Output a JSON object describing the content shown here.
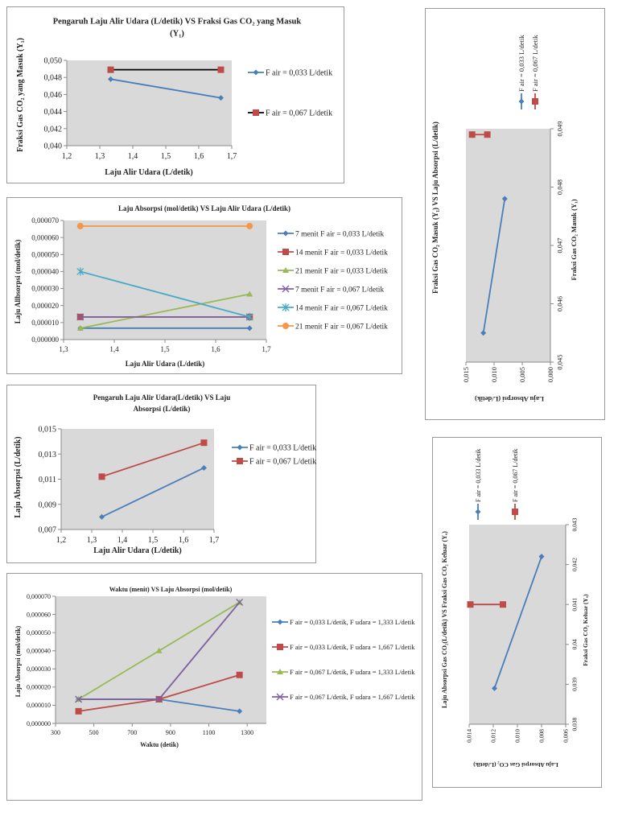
{
  "chart_data": [
    {
      "type": "line",
      "title": [
        "Pengaruh Laju Alir Udara (L/detik) VS Fraksi Gas CO₂ yang Masuk",
        "(Y₁)"
      ],
      "xlabel": "Laju Alir Udara (L/detik)",
      "ylabel": "Fraksi Gas CO₂ yang Masuk (Y₁)",
      "xlim": [
        1.2,
        1.7
      ],
      "ylim": [
        0.04,
        0.05
      ],
      "xticks": [
        1.2,
        1.3,
        1.4,
        1.5,
        1.6,
        1.7
      ],
      "xtick_labels": [
        "1,2",
        "1,3",
        "1,4",
        "1,5",
        "1,6",
        "1,7"
      ],
      "yticks": [
        0.04,
        0.042,
        0.044,
        0.046,
        0.048,
        0.05
      ],
      "ytick_labels": [
        "0,040",
        "0,042",
        "0,044",
        "0,046",
        "0,048",
        "0,050"
      ],
      "grid": false,
      "legend": "right",
      "series": [
        {
          "name": "F air = 0,033 L/detik",
          "color": "#4a7ebb",
          "marker_color": "#4a7ebb",
          "marker": "diamond",
          "x": [
            1.333,
            1.667
          ],
          "y": [
            0.0478,
            0.0456
          ]
        },
        {
          "name": "F air = 0,067 L/detik",
          "color": "#000000",
          "marker_color": "#be4b48",
          "marker": "square",
          "x": [
            1.333,
            1.667
          ],
          "y": [
            0.0489,
            0.0489
          ]
        }
      ]
    },
    {
      "type": "line",
      "title": [
        "Laju Absorpsi (mol/detik) VS Laju Alir Udara (L/detik)"
      ],
      "xlabel": "Laju Alir Udara (L/detik)",
      "ylabel": "Laju Allbsorpsi  (mol/detik)",
      "xlim": [
        1.3,
        1.7
      ],
      "ylim": [
        0,
        7e-05
      ],
      "xticks": [
        1.3,
        1.4,
        1.5,
        1.6,
        1.7
      ],
      "xtick_labels": [
        "1,3",
        "1,4",
        "1,5",
        "1,6",
        "1,7"
      ],
      "yticks": [
        0,
        1e-05,
        2e-05,
        3e-05,
        4e-05,
        5e-05,
        6e-05,
        7e-05
      ],
      "ytick_labels": [
        "0,000000",
        "0,000010",
        "0,000020",
        "0,000030",
        "0,000040",
        "0,000050",
        "0,000060",
        "0,000070"
      ],
      "grid": false,
      "legend": "right",
      "series": [
        {
          "name": "7 menit F air = 0,033 L/detik",
          "color": "#4a7ebb",
          "marker_color": "#4a7ebb",
          "marker": "diamond",
          "x": [
            1.333,
            1.667
          ],
          "y": [
            6.7e-06,
            6.7e-06
          ]
        },
        {
          "name": "14 menit F air = 0,033 L/detik",
          "color": "#be4b48",
          "marker_color": "#be4b48",
          "marker": "square",
          "x": [
            1.333,
            1.667
          ],
          "y": [
            1.33e-05,
            1.33e-05
          ]
        },
        {
          "name": "21 menit F air = 0,033 L/detik",
          "color": "#98b954",
          "marker_color": "#98b954",
          "marker": "triangle",
          "x": [
            1.333,
            1.667
          ],
          "y": [
            6.7e-06,
            2.67e-05
          ]
        },
        {
          "name": "7 menit F air = 0,067 L/detik",
          "color": "#7d60a0",
          "marker_color": "#7d60a0",
          "marker": "x",
          "x": [
            1.333,
            1.667
          ],
          "y": [
            1.33e-05,
            1.33e-05
          ]
        },
        {
          "name": "14 menit F air = 0,067 L/detik",
          "color": "#46aac5",
          "marker_color": "#46aac5",
          "marker": "star",
          "x": [
            1.333,
            1.667
          ],
          "y": [
            4e-05,
            1.33e-05
          ]
        },
        {
          "name": "21 menit F air = 0,067 L/detik",
          "color": "#f79646",
          "marker_color": "#f79646",
          "marker": "circle",
          "x": [
            1.333,
            1.667
          ],
          "y": [
            6.67e-05,
            6.67e-05
          ]
        }
      ]
    },
    {
      "type": "line",
      "title": [
        "Pengaruh Laju Alir Udara(L/detik) VS  Laju",
        "Absorpsi (L/detik)"
      ],
      "xlabel": "Laju Alir Udara (L/detik)",
      "ylabel": "Laju Absorpsi (L/detik)",
      "xlim": [
        1.2,
        1.7
      ],
      "ylim": [
        0.007,
        0.015
      ],
      "xticks": [
        1.2,
        1.3,
        1.4,
        1.5,
        1.6,
        1.7
      ],
      "xtick_labels": [
        "1,2",
        "1,3",
        "1,4",
        "1,5",
        "1,6",
        "1,7"
      ],
      "yticks": [
        0.007,
        0.009,
        0.011,
        0.013,
        0.015
      ],
      "ytick_labels": [
        "0,007",
        "0,009",
        "0,011",
        "0,013",
        "0,015"
      ],
      "grid": false,
      "legend": "right",
      "series": [
        {
          "name": "F air = 0,033 L/detik",
          "color": "#4a7ebb",
          "marker_color": "#4a7ebb",
          "marker": "diamond",
          "x": [
            1.333,
            1.667
          ],
          "y": [
            0.008,
            0.0119
          ]
        },
        {
          "name": "F air = 0,067 L/detik",
          "color": "#be4b48",
          "marker_color": "#be4b48",
          "marker": "square",
          "x": [
            1.333,
            1.667
          ],
          "y": [
            0.0112,
            0.0139
          ]
        }
      ]
    },
    {
      "type": "line",
      "title": [
        "Waktu (menit) VS Laju Absorpsi (mol/detik)"
      ],
      "xlabel": "Waktu (detik)",
      "ylabel": "Laju Absorpsi (mol/detik)",
      "xlim": [
        300,
        1400
      ],
      "ylim": [
        0,
        7e-05
      ],
      "xticks": [
        300,
        500,
        700,
        900,
        1100,
        1300
      ],
      "xtick_labels": [
        "300",
        "500",
        "700",
        "900",
        "1100",
        "1300"
      ],
      "yticks": [
        0,
        1e-05,
        2e-05,
        3e-05,
        4e-05,
        5e-05,
        6e-05,
        7e-05
      ],
      "ytick_labels": [
        "0,000000",
        "0,000010",
        "0,000020",
        "0,000030",
        "0,000040",
        "0,000050",
        "0,000060",
        "0,000070"
      ],
      "grid": false,
      "legend": "right",
      "series": [
        {
          "name": "F air = 0,033 L/detik, F udara = 1,333 L/detik",
          "color": "#4a7ebb",
          "marker_color": "#4a7ebb",
          "marker": "diamond",
          "x": [
            420,
            840,
            1260
          ],
          "y": [
            1.33e-05,
            1.33e-05,
            6.7e-06
          ]
        },
        {
          "name": "F air = 0,033 L/detik, F udara = 1,667 L/detik",
          "color": "#be4b48",
          "marker_color": "#be4b48",
          "marker": "square",
          "x": [
            420,
            840,
            1260
          ],
          "y": [
            6.7e-06,
            1.33e-05,
            2.67e-05
          ]
        },
        {
          "name": "F air = 0,067 L/detik, F udara = 1,333 L/detik",
          "color": "#98b954",
          "marker_color": "#98b954",
          "marker": "triangle",
          "x": [
            420,
            840,
            1260
          ],
          "y": [
            1.33e-05,
            4e-05,
            6.67e-05
          ]
        },
        {
          "name": "F air = 0,067 L/detik, F udara = 1,667  L/detik",
          "color": "#7d60a0",
          "marker_color": "#7d60a0",
          "marker": "x",
          "x": [
            420,
            840,
            1260
          ],
          "y": [
            1.33e-05,
            1.33e-05,
            6.67e-05
          ]
        }
      ]
    },
    {
      "type": "line",
      "orientation": "rotated-90-counterclockwise",
      "title": [
        "Fraksi Gas CO₂ Masuk (Y₁) VS Laju Absorpsi (L/detik)"
      ],
      "xlabel": "Fraksi Gas CO₂ Masuk (Y₁)",
      "ylabel": "Laju Absorpsi (L/detik)",
      "xlim": [
        0.045,
        0.049
      ],
      "ylim": [
        0,
        0.015
      ],
      "xticks": [
        0.045,
        0.046,
        0.047,
        0.048,
        0.049
      ],
      "xtick_labels": [
        "0,045",
        "0,046",
        "0,047",
        "0,048",
        "0,049"
      ],
      "yticks": [
        0,
        0.005,
        0.01,
        0.015
      ],
      "ytick_labels": [
        "0,000",
        "0,005",
        "0,010",
        "0,015"
      ],
      "grid": false,
      "legend": "right",
      "series": [
        {
          "name": "F air = 0,033 L/detik",
          "color": "#4a7ebb",
          "marker_color": "#4a7ebb",
          "marker": "diamond",
          "x": [
            0.0478,
            0.0455
          ],
          "y": [
            0.0081,
            0.0119
          ]
        },
        {
          "name": "F air = 0,067 L/detik",
          "color": "#be4b48",
          "marker_color": "#be4b48",
          "marker": "square",
          "x": [
            0.0489,
            0.0489
          ],
          "y": [
            0.0112,
            0.0139
          ]
        }
      ]
    },
    {
      "type": "line",
      "orientation": "rotated-90-counterclockwise",
      "title": [
        "Laju Absorpsi Gas CO₂(L/detik) VS Fraksi Gas CO₂ Keluar (Yₐ)"
      ],
      "xlabel": "Fraksi Gas CO₂ Keluar (Yₐ)",
      "ylabel": "Laju  Absorpsi Gas CO₂  (L/detik)",
      "xlim": [
        0.038,
        0.043
      ],
      "ylim": [
        0.006,
        0.014
      ],
      "xticks": [
        0.038,
        0.039,
        0.04,
        0.041,
        0.042,
        0.043
      ],
      "xtick_labels": [
        "0,038",
        "0,039",
        "0,04",
        "0,041",
        "0,042",
        "0,043"
      ],
      "yticks": [
        0.006,
        0.008,
        0.01,
        0.012,
        0.014
      ],
      "ytick_labels": [
        "0,006",
        "0,008",
        "0,010",
        "0,012",
        "0,014"
      ],
      "grid": false,
      "legend": "right",
      "series": [
        {
          "name": "F air = 0,033 L/detik",
          "color": "#4a7ebb",
          "marker_color": "#4a7ebb",
          "marker": "diamond",
          "x": [
            0.0422,
            0.0389
          ],
          "y": [
            0.008,
            0.0119
          ]
        },
        {
          "name": "F air = 0,067 L/detik",
          "color": "#be4b48",
          "marker_color": "#be4b48",
          "marker": "square",
          "x": [
            0.041,
            0.041
          ],
          "y": [
            0.0112,
            0.0139
          ]
        }
      ]
    }
  ]
}
